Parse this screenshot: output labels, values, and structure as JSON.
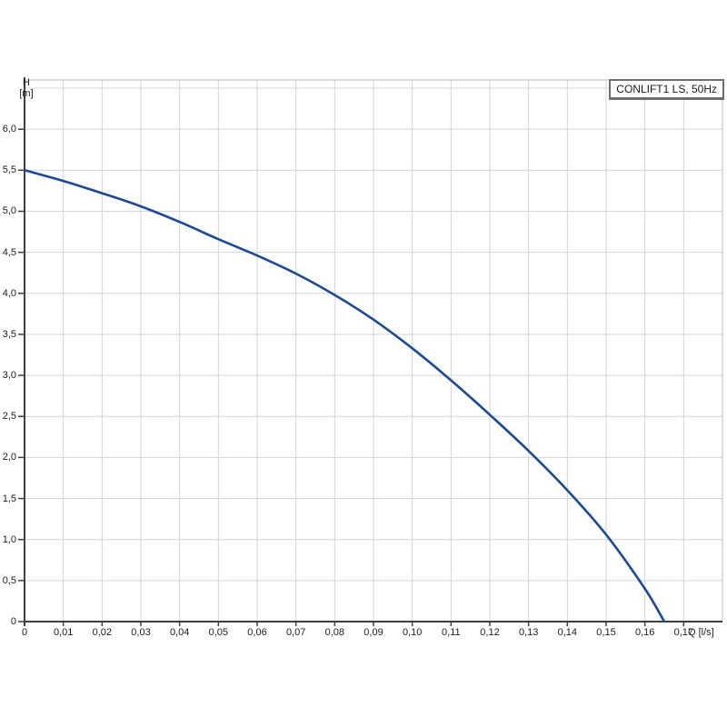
{
  "title_box": {
    "label": "CONLIFT1 LS, 50Hz"
  },
  "axes": {
    "y_title_line1": "H",
    "y_title_line2": "[m]",
    "x_title": "Q [l/s]"
  },
  "colors": {
    "curve": "#1a4a96",
    "grid": "#d4d4d8",
    "frame": "#bcbcc0",
    "axis": "#3f3f3f",
    "text": "#1c1c1c"
  },
  "chart_data": {
    "type": "line",
    "title": "CONLIFT1 LS, 50Hz",
    "xlabel": "Q [l/s]",
    "ylabel": "H [m]",
    "xlim": [
      0,
      0.18
    ],
    "ylim": [
      0,
      6.6
    ],
    "x_tick_step": 0.01,
    "y_tick_step": 0.5,
    "grid": true,
    "legend_position": "top-right",
    "x_tick_labels": [
      "0",
      "0,01",
      "0,02",
      "0,03",
      "0,04",
      "0,05",
      "0,06",
      "0,07",
      "0,08",
      "0,09",
      "0,10",
      "0,11",
      "0,12",
      "0,13",
      "0,14",
      "0,15",
      "0,16",
      "0,17"
    ],
    "y_tick_labels": [
      "0",
      "0,5",
      "1,0",
      "1,5",
      "2,0",
      "2,5",
      "3,0",
      "3,5",
      "4,0",
      "4,5",
      "5,0",
      "5,5",
      "6,0"
    ],
    "series": [
      {
        "name": "CONLIFT1 LS, 50Hz",
        "color": "#1a4a96",
        "points": [
          [
            0.0,
            5.5
          ],
          [
            0.01,
            5.37
          ],
          [
            0.02,
            5.22
          ],
          [
            0.03,
            5.06
          ],
          [
            0.04,
            4.87
          ],
          [
            0.05,
            4.66
          ],
          [
            0.06,
            4.46
          ],
          [
            0.07,
            4.24
          ],
          [
            0.08,
            3.98
          ],
          [
            0.09,
            3.68
          ],
          [
            0.1,
            3.33
          ],
          [
            0.11,
            2.94
          ],
          [
            0.12,
            2.52
          ],
          [
            0.13,
            2.08
          ],
          [
            0.14,
            1.6
          ],
          [
            0.15,
            1.06
          ],
          [
            0.16,
            0.4
          ],
          [
            0.165,
            0.0
          ]
        ]
      }
    ]
  }
}
